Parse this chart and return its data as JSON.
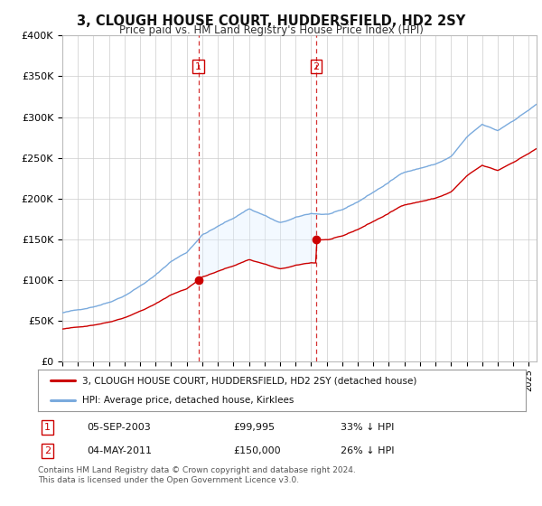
{
  "title": "3, CLOUGH HOUSE COURT, HUDDERSFIELD, HD2 2SY",
  "subtitle": "Price paid vs. HM Land Registry's House Price Index (HPI)",
  "legend_line1": "3, CLOUGH HOUSE COURT, HUDDERSFIELD, HD2 2SY (detached house)",
  "legend_line2": "HPI: Average price, detached house, Kirklees",
  "sale1_date": 2003.75,
  "sale1_price": 99995,
  "sale1_label": "1",
  "sale1_display": "05-SEP-2003",
  "sale1_amount": "£99,995",
  "sale1_hpi": "33% ↓ HPI",
  "sale2_date": 2011.33,
  "sale2_price": 150000,
  "sale2_label": "2",
  "sale2_display": "04-MAY-2011",
  "sale2_amount": "£150,000",
  "sale2_hpi": "26% ↓ HPI",
  "xmin": 1995.0,
  "xmax": 2025.5,
  "ymin": 0,
  "ymax": 400000,
  "background_color": "#ffffff",
  "plot_bg_color": "#ffffff",
  "grid_color": "#cccccc",
  "hpi_color": "#7aaadd",
  "price_color": "#cc0000",
  "vline_color": "#cc0000",
  "shade_color": "#ddeeff",
  "footnote": "Contains HM Land Registry data © Crown copyright and database right 2024.\nThis data is licensed under the Open Government Licence v3.0."
}
